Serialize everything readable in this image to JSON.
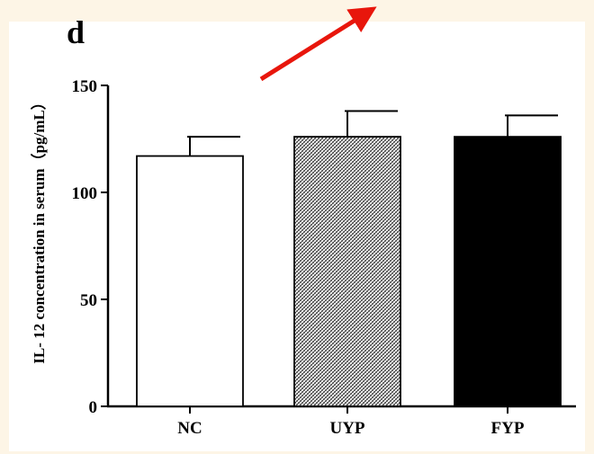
{
  "panel_label": "d",
  "colors": {
    "background": "#fdf5e6",
    "annotation_arrow": "#e8160c",
    "axis": "#000000"
  },
  "chart_data": {
    "type": "bar",
    "title": "",
    "xlabel": "",
    "ylabel": "IL- 12  concentration in serum（pg/mL）",
    "ylim": [
      0,
      150
    ],
    "yticks": [
      0,
      50,
      100,
      150
    ],
    "categories": [
      "NC",
      "UYP",
      "FYP"
    ],
    "values": [
      117,
      126,
      126
    ],
    "errors": [
      9,
      12,
      10
    ],
    "bar_fills": [
      "white",
      "crosshatch",
      "black"
    ],
    "grid": false,
    "legend": "none"
  },
  "annotations": [
    {
      "type": "arrow",
      "color": "#e8160c",
      "direction": "up-right"
    }
  ]
}
